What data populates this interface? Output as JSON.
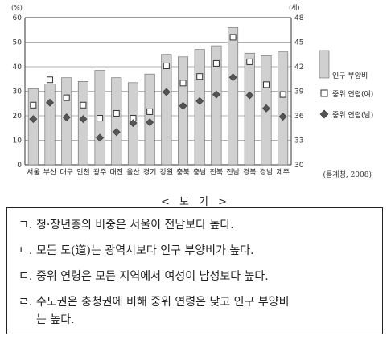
{
  "chart_data": {
    "type": "bar",
    "left_unit": "(%)",
    "right_unit": "(세)",
    "y_left_ticks": [
      0,
      10,
      20,
      30,
      40,
      50,
      60
    ],
    "y_right_ticks": [
      30,
      33,
      36,
      39,
      42,
      45,
      48
    ],
    "ylim_left": [
      0,
      60
    ],
    "ylim_right": [
      30,
      48
    ],
    "grid": true,
    "legend_position": "right",
    "categories": [
      "서울",
      "부산",
      "대구",
      "인천",
      "광주",
      "대전",
      "울산",
      "경기",
      "강원",
      "충북",
      "충남",
      "전북",
      "전남",
      "경북",
      "경남",
      "제주"
    ],
    "series": [
      {
        "name": "인구 부양비",
        "axis": "left",
        "kind": "bar",
        "values": [
          31,
          33,
          35.5,
          34,
          38.5,
          35.5,
          33.5,
          37,
          45,
          44,
          47,
          48.5,
          56,
          45.5,
          44.5,
          46
        ]
      },
      {
        "name": "중위 연령(여)",
        "axis": "right",
        "kind": "square",
        "values": [
          37.3,
          40.4,
          38.2,
          37.3,
          35.7,
          36.3,
          35.7,
          36.5,
          42.1,
          40.0,
          40.8,
          42.4,
          45.6,
          42.6,
          39.8,
          38.6
        ]
      },
      {
        "name": "중위 연령(남)",
        "axis": "right",
        "kind": "diamond",
        "values": [
          35.6,
          37.6,
          35.8,
          35.6,
          33.3,
          34.0,
          35.1,
          35.2,
          38.9,
          37.2,
          37.8,
          38.6,
          40.7,
          38.5,
          36.9,
          35.9
        ]
      }
    ]
  },
  "source_note": "(통계청, 2008)",
  "bogi": {
    "title": "< 보 기 >",
    "items": [
      {
        "marker": "ㄱ.",
        "text": "청·장년층의 비중은 서울이 전남보다 높다."
      },
      {
        "marker": "ㄴ.",
        "text": "모든 도(道)는 광역시보다 인구 부양비가 높다."
      },
      {
        "marker": "ㄷ.",
        "text": "중위 연령은 모든 지역에서 여성이 남성보다 높다."
      },
      {
        "marker": "ㄹ.",
        "text": "수도권은 충청권에 비해 중위 연령은 낮고 인구 부양비"
      },
      {
        "marker": "",
        "text": "는 높다."
      }
    ]
  }
}
